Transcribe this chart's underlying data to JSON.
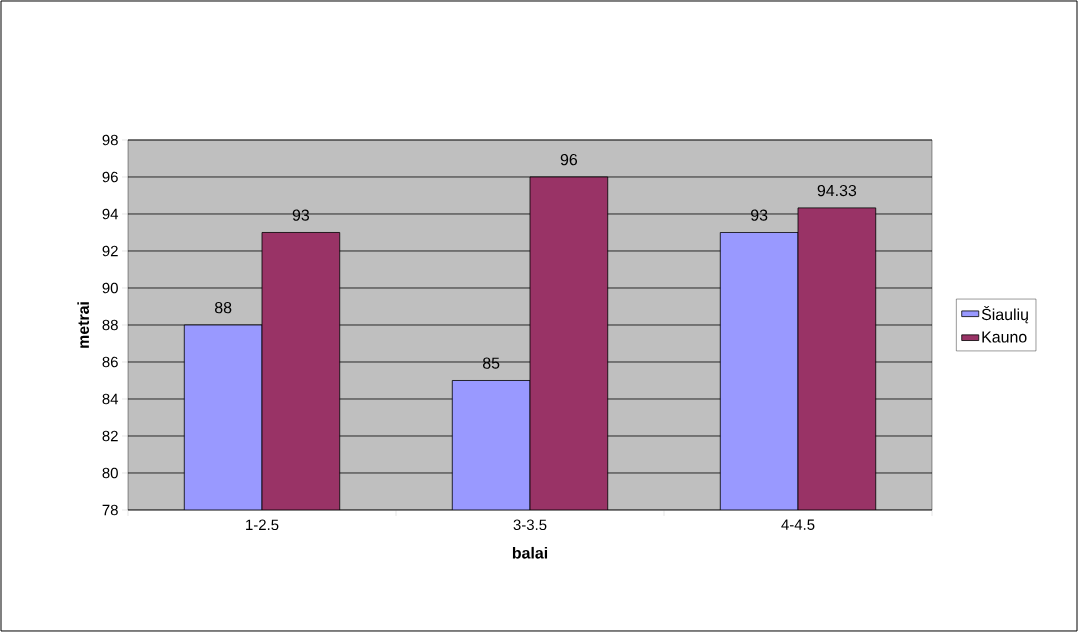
{
  "chart_data": {
    "type": "bar",
    "xlabel": "balai",
    "ylabel": "metrai",
    "categories": [
      "1-2.5",
      "3-3.5",
      "4-4.5"
    ],
    "series": [
      {
        "name": "Šiaulių",
        "color": "#9999ff",
        "values": [
          88,
          85,
          93
        ]
      },
      {
        "name": "Kauno",
        "color": "#993366",
        "values": [
          93,
          96,
          94.33
        ]
      }
    ],
    "ylim": [
      78,
      98
    ],
    "yticks": [
      78,
      80,
      82,
      84,
      86,
      88,
      90,
      92,
      94,
      96,
      98
    ],
    "grid": "y",
    "legend": "right",
    "data_labels": true
  }
}
